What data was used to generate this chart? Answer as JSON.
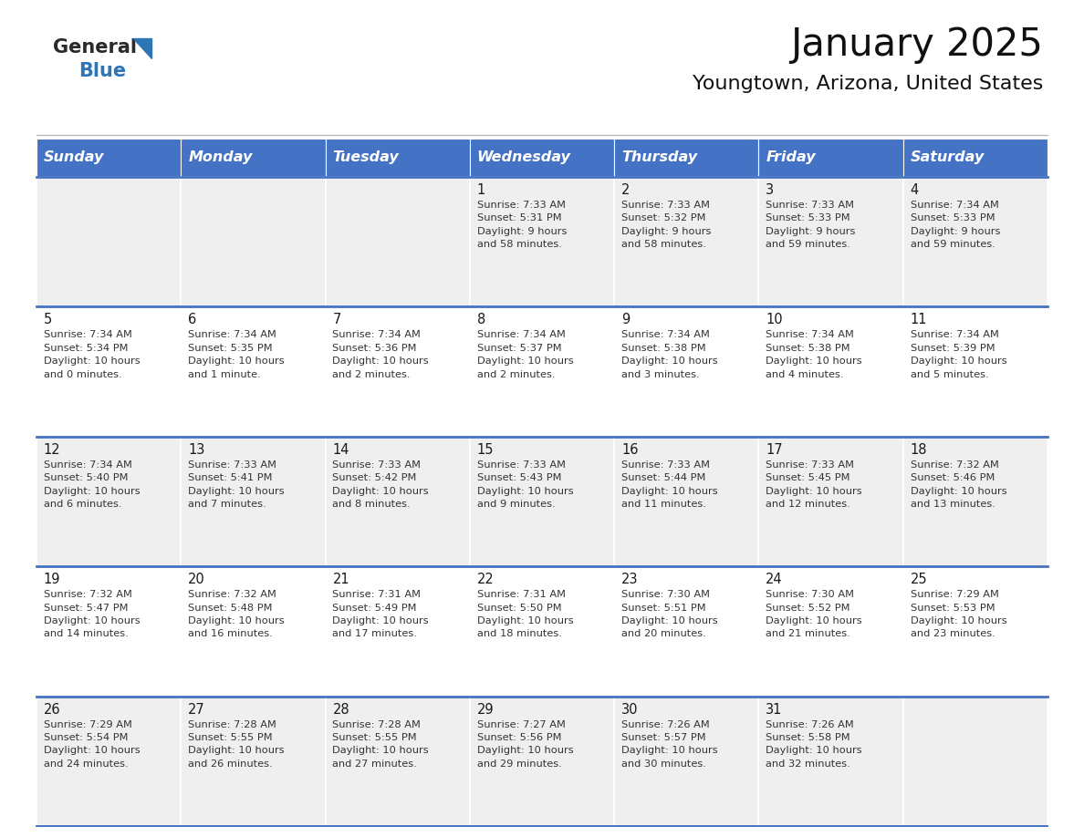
{
  "title": "January 2025",
  "subtitle": "Youngtown, Arizona, United States",
  "header_bg": "#4472C4",
  "header_text_color": "#FFFFFF",
  "cell_bg_light": "#EFEFEF",
  "cell_bg_white": "#FFFFFF",
  "header_row": [
    "Sunday",
    "Monday",
    "Tuesday",
    "Wednesday",
    "Thursday",
    "Friday",
    "Saturday"
  ],
  "weeks": [
    [
      {
        "day": "",
        "info": ""
      },
      {
        "day": "",
        "info": ""
      },
      {
        "day": "",
        "info": ""
      },
      {
        "day": "1",
        "info": "Sunrise: 7:33 AM\nSunset: 5:31 PM\nDaylight: 9 hours\nand 58 minutes."
      },
      {
        "day": "2",
        "info": "Sunrise: 7:33 AM\nSunset: 5:32 PM\nDaylight: 9 hours\nand 58 minutes."
      },
      {
        "day": "3",
        "info": "Sunrise: 7:33 AM\nSunset: 5:33 PM\nDaylight: 9 hours\nand 59 minutes."
      },
      {
        "day": "4",
        "info": "Sunrise: 7:34 AM\nSunset: 5:33 PM\nDaylight: 9 hours\nand 59 minutes."
      }
    ],
    [
      {
        "day": "5",
        "info": "Sunrise: 7:34 AM\nSunset: 5:34 PM\nDaylight: 10 hours\nand 0 minutes."
      },
      {
        "day": "6",
        "info": "Sunrise: 7:34 AM\nSunset: 5:35 PM\nDaylight: 10 hours\nand 1 minute."
      },
      {
        "day": "7",
        "info": "Sunrise: 7:34 AM\nSunset: 5:36 PM\nDaylight: 10 hours\nand 2 minutes."
      },
      {
        "day": "8",
        "info": "Sunrise: 7:34 AM\nSunset: 5:37 PM\nDaylight: 10 hours\nand 2 minutes."
      },
      {
        "day": "9",
        "info": "Sunrise: 7:34 AM\nSunset: 5:38 PM\nDaylight: 10 hours\nand 3 minutes."
      },
      {
        "day": "10",
        "info": "Sunrise: 7:34 AM\nSunset: 5:38 PM\nDaylight: 10 hours\nand 4 minutes."
      },
      {
        "day": "11",
        "info": "Sunrise: 7:34 AM\nSunset: 5:39 PM\nDaylight: 10 hours\nand 5 minutes."
      }
    ],
    [
      {
        "day": "12",
        "info": "Sunrise: 7:34 AM\nSunset: 5:40 PM\nDaylight: 10 hours\nand 6 minutes."
      },
      {
        "day": "13",
        "info": "Sunrise: 7:33 AM\nSunset: 5:41 PM\nDaylight: 10 hours\nand 7 minutes."
      },
      {
        "day": "14",
        "info": "Sunrise: 7:33 AM\nSunset: 5:42 PM\nDaylight: 10 hours\nand 8 minutes."
      },
      {
        "day": "15",
        "info": "Sunrise: 7:33 AM\nSunset: 5:43 PM\nDaylight: 10 hours\nand 9 minutes."
      },
      {
        "day": "16",
        "info": "Sunrise: 7:33 AM\nSunset: 5:44 PM\nDaylight: 10 hours\nand 11 minutes."
      },
      {
        "day": "17",
        "info": "Sunrise: 7:33 AM\nSunset: 5:45 PM\nDaylight: 10 hours\nand 12 minutes."
      },
      {
        "day": "18",
        "info": "Sunrise: 7:32 AM\nSunset: 5:46 PM\nDaylight: 10 hours\nand 13 minutes."
      }
    ],
    [
      {
        "day": "19",
        "info": "Sunrise: 7:32 AM\nSunset: 5:47 PM\nDaylight: 10 hours\nand 14 minutes."
      },
      {
        "day": "20",
        "info": "Sunrise: 7:32 AM\nSunset: 5:48 PM\nDaylight: 10 hours\nand 16 minutes."
      },
      {
        "day": "21",
        "info": "Sunrise: 7:31 AM\nSunset: 5:49 PM\nDaylight: 10 hours\nand 17 minutes."
      },
      {
        "day": "22",
        "info": "Sunrise: 7:31 AM\nSunset: 5:50 PM\nDaylight: 10 hours\nand 18 minutes."
      },
      {
        "day": "23",
        "info": "Sunrise: 7:30 AM\nSunset: 5:51 PM\nDaylight: 10 hours\nand 20 minutes."
      },
      {
        "day": "24",
        "info": "Sunrise: 7:30 AM\nSunset: 5:52 PM\nDaylight: 10 hours\nand 21 minutes."
      },
      {
        "day": "25",
        "info": "Sunrise: 7:29 AM\nSunset: 5:53 PM\nDaylight: 10 hours\nand 23 minutes."
      }
    ],
    [
      {
        "day": "26",
        "info": "Sunrise: 7:29 AM\nSunset: 5:54 PM\nDaylight: 10 hours\nand 24 minutes."
      },
      {
        "day": "27",
        "info": "Sunrise: 7:28 AM\nSunset: 5:55 PM\nDaylight: 10 hours\nand 26 minutes."
      },
      {
        "day": "28",
        "info": "Sunrise: 7:28 AM\nSunset: 5:55 PM\nDaylight: 10 hours\nand 27 minutes."
      },
      {
        "day": "29",
        "info": "Sunrise: 7:27 AM\nSunset: 5:56 PM\nDaylight: 10 hours\nand 29 minutes."
      },
      {
        "day": "30",
        "info": "Sunrise: 7:26 AM\nSunset: 5:57 PM\nDaylight: 10 hours\nand 30 minutes."
      },
      {
        "day": "31",
        "info": "Sunrise: 7:26 AM\nSunset: 5:58 PM\nDaylight: 10 hours\nand 32 minutes."
      },
      {
        "day": "",
        "info": ""
      }
    ]
  ],
  "logo_general_color": "#2a2a2a",
  "logo_blue_color": "#2E75B6",
  "title_fontsize": 30,
  "subtitle_fontsize": 16,
  "day_num_fontsize": 10.5,
  "cell_text_fontsize": 8.2,
  "header_fontsize": 11.5,
  "bg_color": "#FFFFFF",
  "divider_color": "#4472C4",
  "top_line_color": "#BBBBBB"
}
